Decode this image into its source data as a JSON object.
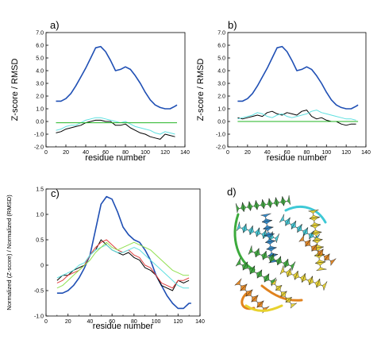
{
  "chart_data": [
    {
      "type": "line",
      "panel_label": "a)",
      "xlabel": "residue number",
      "ylabel": "Z-score / RMSD",
      "xlim": [
        0,
        140
      ],
      "ylim": [
        -2.0,
        7.0
      ],
      "xticks": [
        "0",
        "20",
        "40",
        "60",
        "80",
        "100",
        "120",
        "140"
      ],
      "yticks": [
        "-2.0",
        "-1.0",
        "0.0",
        "1.0",
        "2.0",
        "3.0",
        "4.0",
        "5.0",
        "6.0",
        "7.0"
      ],
      "grid": false,
      "series": [
        {
          "color": "#1f4fb4",
          "x": [
            10,
            15,
            20,
            25,
            30,
            35,
            40,
            45,
            50,
            55,
            60,
            65,
            70,
            75,
            80,
            85,
            90,
            95,
            100,
            105,
            110,
            115,
            120,
            125,
            130,
            132
          ],
          "y": [
            1.6,
            1.6,
            1.8,
            2.2,
            2.8,
            3.5,
            4.2,
            5.0,
            5.8,
            5.9,
            5.5,
            4.8,
            4.0,
            4.1,
            4.3,
            4.1,
            3.6,
            3.0,
            2.3,
            1.7,
            1.3,
            1.1,
            1.0,
            1.0,
            1.2,
            1.3
          ]
        },
        {
          "color": "#000000",
          "x": [
            10,
            15,
            20,
            25,
            30,
            35,
            40,
            45,
            50,
            55,
            60,
            65,
            70,
            75,
            80,
            85,
            90,
            95,
            100,
            105,
            110,
            115,
            120,
            125,
            130
          ],
          "y": [
            -0.9,
            -0.8,
            -0.6,
            -0.5,
            -0.4,
            -0.3,
            -0.1,
            0.0,
            0.1,
            0.1,
            0.0,
            0.0,
            -0.3,
            -0.3,
            -0.2,
            -0.5,
            -0.7,
            -0.9,
            -1.0,
            -1.2,
            -1.3,
            -1.4,
            -1.0,
            -1.1,
            -1.2
          ]
        },
        {
          "color": "#5fe0e0",
          "x": [
            10,
            15,
            20,
            25,
            30,
            35,
            40,
            45,
            50,
            55,
            60,
            65,
            70,
            75,
            80,
            85,
            90,
            95,
            100,
            105,
            110,
            115,
            120,
            125,
            130
          ],
          "y": [
            -0.7,
            -0.6,
            -0.4,
            -0.3,
            -0.3,
            -0.1,
            0.1,
            0.2,
            0.3,
            0.3,
            0.2,
            0.1,
            0.0,
            -0.1,
            0.0,
            -0.2,
            -0.4,
            -0.5,
            -0.6,
            -0.7,
            -0.9,
            -1.0,
            -0.8,
            -0.9,
            -1.0
          ]
        },
        {
          "color": "#22b422",
          "x": [
            10,
            132
          ],
          "y": [
            -0.1,
            -0.1
          ]
        }
      ]
    },
    {
      "type": "line",
      "panel_label": "b)",
      "xlabel": "residue number",
      "ylabel": "Z-score / RMSD",
      "xlim": [
        0,
        140
      ],
      "ylim": [
        -2.0,
        7.0
      ],
      "xticks": [
        "0",
        "20",
        "40",
        "60",
        "80",
        "100",
        "120",
        "140"
      ],
      "yticks": [
        "-2.0",
        "-1.0",
        "0.0",
        "1.0",
        "2.0",
        "3.0",
        "4.0",
        "5.0",
        "6.0",
        "7.0"
      ],
      "grid": false,
      "series": [
        {
          "color": "#1f4fb4",
          "x": [
            10,
            15,
            20,
            25,
            30,
            35,
            40,
            45,
            50,
            55,
            60,
            65,
            70,
            75,
            80,
            85,
            90,
            95,
            100,
            105,
            110,
            115,
            120,
            125,
            130,
            132
          ],
          "y": [
            1.6,
            1.6,
            1.8,
            2.2,
            2.8,
            3.5,
            4.2,
            5.0,
            5.8,
            5.9,
            5.5,
            4.8,
            4.0,
            4.1,
            4.3,
            4.1,
            3.6,
            3.0,
            2.3,
            1.7,
            1.3,
            1.1,
            1.0,
            1.0,
            1.2,
            1.3
          ]
        },
        {
          "color": "#000000",
          "x": [
            10,
            15,
            20,
            25,
            30,
            35,
            40,
            45,
            50,
            55,
            60,
            65,
            70,
            75,
            80,
            85,
            90,
            95,
            100,
            105,
            110,
            115,
            120,
            125,
            130
          ],
          "y": [
            0.3,
            0.2,
            0.3,
            0.4,
            0.5,
            0.4,
            0.7,
            0.8,
            0.6,
            0.5,
            0.7,
            0.6,
            0.5,
            0.8,
            0.9,
            0.4,
            0.2,
            0.3,
            0.1,
            0.0,
            0.0,
            -0.2,
            -0.3,
            -0.2,
            -0.2
          ]
        },
        {
          "color": "#5fe0e0",
          "x": [
            10,
            15,
            20,
            25,
            30,
            35,
            40,
            45,
            50,
            55,
            60,
            65,
            70,
            75,
            80,
            85,
            90,
            95,
            100,
            105,
            110,
            115,
            120,
            125,
            130
          ],
          "y": [
            0.2,
            0.3,
            0.4,
            0.5,
            0.7,
            0.6,
            0.4,
            0.3,
            0.5,
            0.6,
            0.4,
            0.3,
            0.4,
            0.5,
            0.6,
            0.8,
            0.9,
            0.7,
            0.6,
            0.5,
            0.4,
            0.3,
            0.2,
            0.2,
            0.1
          ]
        },
        {
          "color": "#22b422",
          "x": [
            10,
            132
          ],
          "y": [
            0.0,
            0.0
          ]
        }
      ]
    },
    {
      "type": "line",
      "panel_label": "c)",
      "xlabel": "residue number",
      "ylabel": "Normalized (Z-score) / Normalized (RMSD)",
      "xlim": [
        0,
        140
      ],
      "ylim": [
        -1.0,
        1.5
      ],
      "xticks": [
        "0",
        "20",
        "40",
        "60",
        "80",
        "100",
        "120",
        "140"
      ],
      "yticks": [
        "-1.0",
        "-0.5",
        "0",
        "0.5",
        "1.0",
        "1.5"
      ],
      "grid": false,
      "series": [
        {
          "color": "#1f4fb4",
          "x": [
            10,
            15,
            20,
            25,
            30,
            35,
            40,
            45,
            50,
            55,
            60,
            65,
            70,
            75,
            80,
            85,
            90,
            95,
            100,
            105,
            110,
            115,
            120,
            125,
            130,
            132
          ],
          "y": [
            -0.55,
            -0.55,
            -0.5,
            -0.4,
            -0.25,
            -0.05,
            0.2,
            0.7,
            1.2,
            1.35,
            1.3,
            1.05,
            0.75,
            0.6,
            0.5,
            0.45,
            0.3,
            0.1,
            -0.2,
            -0.4,
            -0.6,
            -0.75,
            -0.85,
            -0.85,
            -0.75,
            -0.75
          ]
        },
        {
          "color": "#000000",
          "x": [
            10,
            15,
            20,
            25,
            30,
            35,
            40,
            45,
            50,
            55,
            60,
            65,
            70,
            75,
            80,
            85,
            90,
            95,
            100,
            105,
            110,
            115,
            120,
            125,
            130
          ],
          "y": [
            -0.3,
            -0.2,
            -0.2,
            -0.1,
            -0.05,
            0.0,
            0.2,
            0.3,
            0.5,
            0.4,
            0.3,
            0.25,
            0.2,
            0.25,
            0.15,
            0.1,
            -0.05,
            -0.1,
            -0.2,
            -0.4,
            -0.45,
            -0.5,
            -0.3,
            -0.35,
            -0.3
          ]
        },
        {
          "color": "#e04040",
          "x": [
            10,
            15,
            20,
            25,
            30,
            35,
            40,
            45,
            50,
            55,
            60,
            65,
            70,
            75,
            80,
            85,
            90,
            95,
            100,
            105,
            110,
            115,
            120,
            125,
            130
          ],
          "y": [
            -0.35,
            -0.3,
            -0.2,
            -0.15,
            -0.1,
            0.0,
            0.2,
            0.35,
            0.45,
            0.5,
            0.4,
            0.3,
            0.25,
            0.3,
            0.2,
            0.15,
            0.0,
            -0.05,
            -0.2,
            -0.35,
            -0.4,
            -0.45,
            -0.3,
            -0.3,
            -0.25
          ]
        },
        {
          "color": "#5fe0e0",
          "x": [
            10,
            15,
            20,
            25,
            30,
            35,
            40,
            45,
            50,
            55,
            60,
            65,
            70,
            75,
            80,
            85,
            90,
            95,
            100,
            105,
            110,
            115,
            120,
            125,
            130
          ],
          "y": [
            -0.25,
            -0.2,
            -0.15,
            -0.1,
            0.0,
            0.05,
            0.2,
            0.3,
            0.35,
            0.4,
            0.3,
            0.25,
            0.25,
            0.3,
            0.35,
            0.3,
            0.2,
            0.1,
            0.0,
            -0.1,
            -0.2,
            -0.3,
            -0.4,
            -0.45,
            -0.45
          ]
        },
        {
          "color": "#90e050",
          "x": [
            10,
            15,
            20,
            25,
            30,
            35,
            40,
            45,
            50,
            55,
            60,
            65,
            70,
            75,
            80,
            85,
            90,
            95,
            100,
            105,
            110,
            115,
            120,
            125,
            130
          ],
          "y": [
            -0.45,
            -0.4,
            -0.3,
            -0.2,
            -0.1,
            0.0,
            0.1,
            0.25,
            0.35,
            0.45,
            0.35,
            0.3,
            0.35,
            0.4,
            0.45,
            0.4,
            0.35,
            0.3,
            0.2,
            0.1,
            0.0,
            -0.1,
            -0.15,
            -0.2,
            -0.2
          ]
        }
      ]
    }
  ],
  "panel_d": {
    "label": "d)",
    "colors": {
      "blue": "#2c86c8",
      "cyan": "#3ec9d6",
      "green": "#3caa3c",
      "yellow": "#e8d22e",
      "orange": "#e0821e"
    }
  }
}
